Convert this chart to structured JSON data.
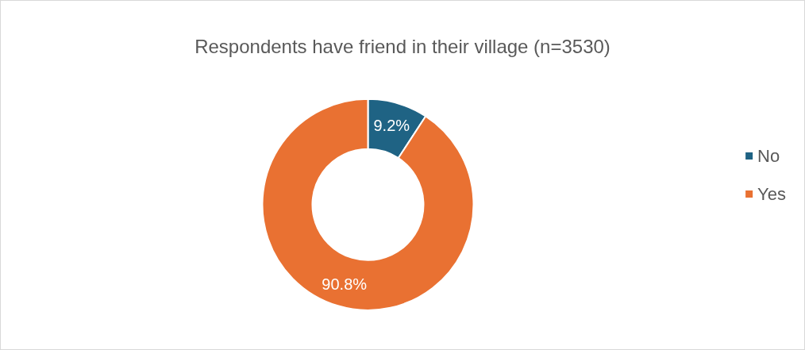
{
  "chart_data": {
    "type": "donut",
    "title": "Respondents have friend in their village (n=3530)",
    "categories": [
      "No",
      "Yes"
    ],
    "values": [
      9.2,
      90.8
    ],
    "colors": [
      "#1f6384",
      "#e97132"
    ],
    "value_labels": [
      "9.2%",
      "90.8%"
    ],
    "legend": "right"
  }
}
